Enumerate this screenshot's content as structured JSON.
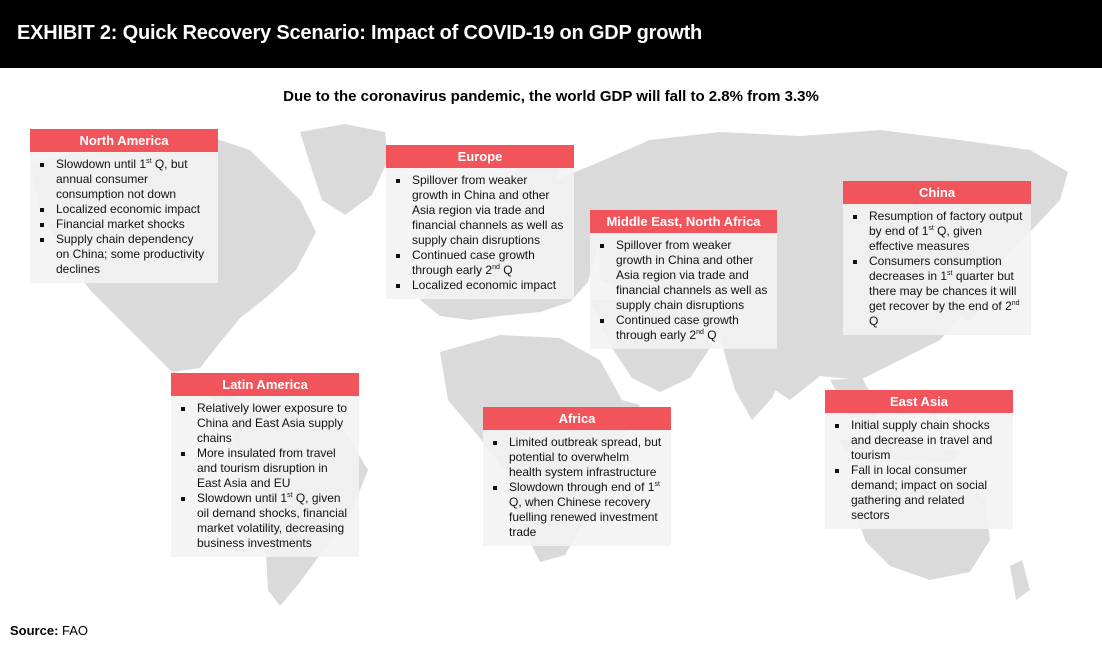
{
  "header": {
    "title": "EXHIBIT 2: Quick Recovery Scenario: Impact of COVID-19 on GDP growth"
  },
  "subtitle": "Due to the coronavirus pandemic, the world GDP will fall to 2.8% from 3.3%",
  "colors": {
    "header_bg": "#000000",
    "accent": "#f2545b",
    "map_land": "#d9d9d9",
    "box_bg": "#f2f2f2"
  },
  "regions": [
    {
      "id": "north-america",
      "title": "North America",
      "bullets": [
        [
          "Slowdown until 1",
          {
            "sup": "st"
          },
          " Q, but annual consumer consumption not down"
        ],
        [
          "Localized economic impact"
        ],
        [
          "Financial market shocks"
        ],
        [
          "Supply chain dependency on China; some productivity declines"
        ]
      ]
    },
    {
      "id": "europe",
      "title": "Europe",
      "bullets": [
        [
          "Spillover from weaker growth in China and other Asia region via trade and financial channels as well as supply chain disruptions"
        ],
        [
          "Continued case growth through early 2",
          {
            "sup": "nd"
          },
          " Q"
        ],
        [
          "Localized economic impact"
        ]
      ]
    },
    {
      "id": "middle-east-north-africa",
      "title": "Middle East, North Africa",
      "bullets": [
        [
          "Spillover from weaker growth in China and other Asia region via trade and financial channels as well as supply chain disruptions"
        ],
        [
          "Continued case growth through early 2",
          {
            "sup": "nd"
          },
          " Q"
        ]
      ]
    },
    {
      "id": "china",
      "title": "China",
      "bullets": [
        [
          "Resumption of factory output by end of 1",
          {
            "sup": "st"
          },
          " Q, given effective measures"
        ],
        [
          "Consumers consumption decreases in 1",
          {
            "sup": "st"
          },
          " quarter but there may be chances it will get recover by the end of 2",
          {
            "sup": "nd"
          },
          " Q"
        ]
      ]
    },
    {
      "id": "latin-america",
      "title": "Latin America",
      "bullets": [
        [
          "Relatively lower exposure to China and East Asia supply chains"
        ],
        [
          "More insulated from travel and tourism disruption in East Asia and EU"
        ],
        [
          "Slowdown until 1",
          {
            "sup": "st"
          },
          " Q, given oil demand shocks, financial market volatility, decreasing business investments"
        ]
      ]
    },
    {
      "id": "africa",
      "title": "Africa",
      "bullets": [
        [
          "Limited outbreak spread, but potential to overwhelm health system infrastructure"
        ],
        [
          "Slowdown through end of 1",
          {
            "sup": "st"
          },
          " Q, when Chinese recovery fuelling renewed investment trade"
        ]
      ]
    },
    {
      "id": "east-asia",
      "title": "East Asia",
      "bullets": [
        [
          "Initial supply chain shocks and decrease in travel and tourism"
        ],
        [
          "Fall in local consumer demand; impact on social gathering and related sectors"
        ]
      ]
    }
  ],
  "source": {
    "label": "Source:",
    "text": "FAO"
  }
}
